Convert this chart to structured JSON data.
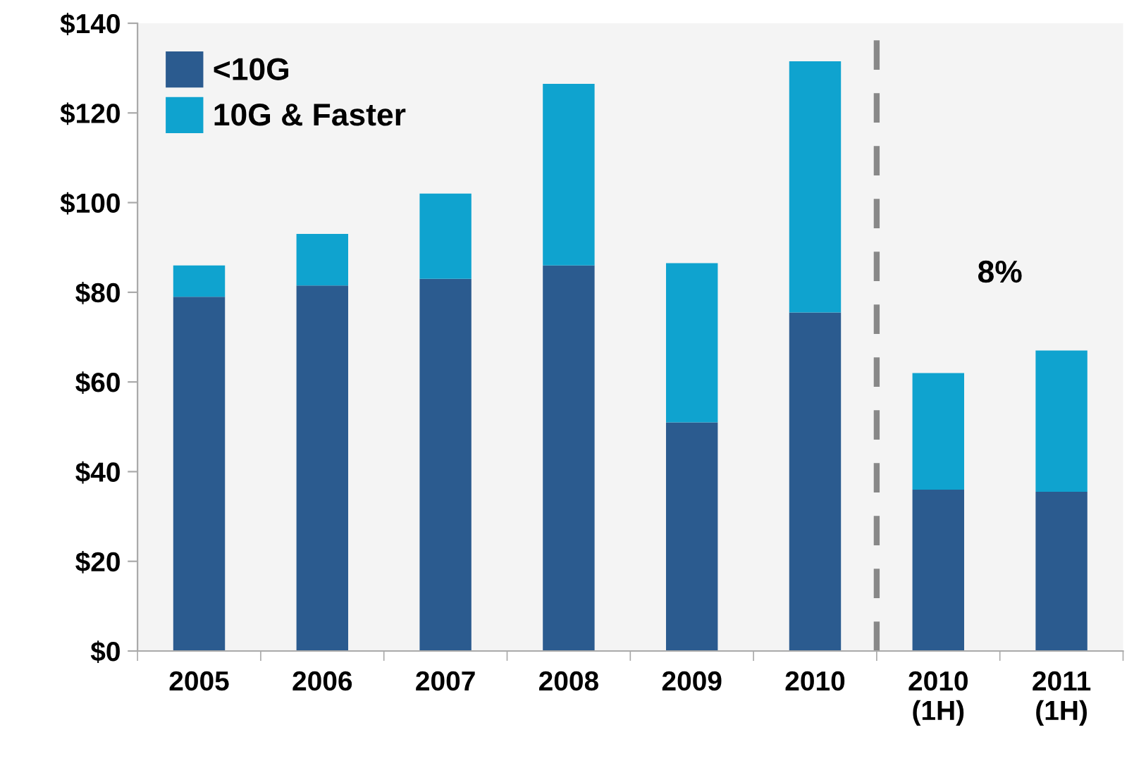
{
  "chart_data": {
    "type": "bar",
    "stacked": true,
    "categories": [
      "2005",
      "2006",
      "2007",
      "2008",
      "2009",
      "2010",
      "2010\n(1H)",
      "2011\n(1H)"
    ],
    "series": [
      {
        "name": "<10G",
        "color": "#2b5b8f",
        "values": [
          79,
          81.5,
          83,
          86,
          51,
          75.5,
          36,
          35.5
        ]
      },
      {
        "name": "10G & Faster",
        "color": "#0fa3cf",
        "values": [
          7,
          11.5,
          19,
          40.5,
          35.5,
          56,
          26,
          31.5
        ]
      }
    ],
    "ylim": [
      0,
      140
    ],
    "yticks": [
      {
        "value": 0,
        "label": "$0"
      },
      {
        "value": 20,
        "label": "$20"
      },
      {
        "value": 40,
        "label": "$40"
      },
      {
        "value": 60,
        "label": "$60"
      },
      {
        "value": 80,
        "label": "$80"
      },
      {
        "value": 100,
        "label": "$100"
      },
      {
        "value": 120,
        "label": "$120"
      },
      {
        "value": 140,
        "label": "$140"
      }
    ],
    "annotations": [
      "8%"
    ],
    "legend": "top left",
    "grid": false
  }
}
